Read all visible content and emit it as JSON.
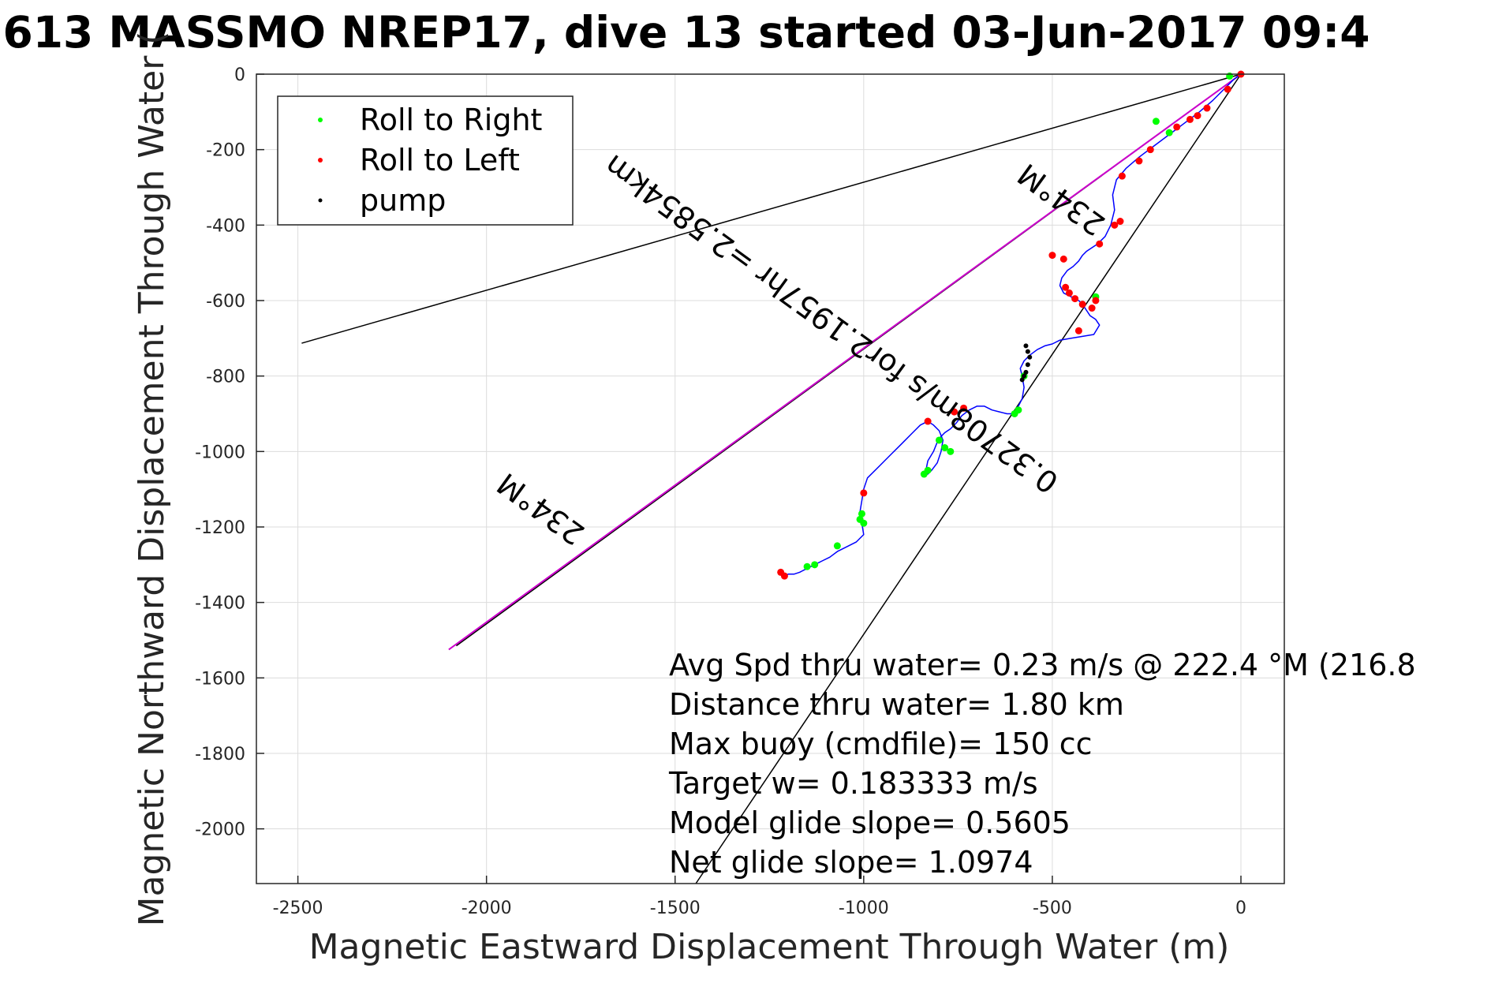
{
  "chart_data": {
    "type": "line",
    "title": "613 MASSMO NREP17, dive 13 started 03-Jun-2017 09:4",
    "xlabel": "Magnetic Eastward Displacement Through Water (m)",
    "ylabel": "Magnetic Northward Displacement Through Water (",
    "xlim": [
      -2610,
      115
    ],
    "ylim": [
      -2145,
      0
    ],
    "xticks": [
      -2500,
      -2000,
      -1500,
      -1000,
      -500,
      0
    ],
    "yticks": [
      0,
      -200,
      -400,
      -600,
      -800,
      -1000,
      -1200,
      -1400,
      -1600,
      -1800,
      -2000
    ],
    "grid": true,
    "legend": {
      "placement": "top-left",
      "entries": [
        {
          "label": "Roll to Right",
          "color": "#00ff00"
        },
        {
          "label": "Roll to Left",
          "color": "#ff0000"
        },
        {
          "label": "pump",
          "color": "#000000"
        }
      ]
    },
    "heading_lines": [
      {
        "x": [
          0,
          -2490
        ],
        "y": [
          0,
          -713
        ],
        "color": "#000000"
      },
      {
        "x": [
          0,
          -2080
        ],
        "y": [
          0,
          -1515
        ],
        "color": "#000000"
      },
      {
        "x": [
          0,
          -1445
        ],
        "y": [
          0,
          -2145
        ],
        "color": "#000000"
      }
    ],
    "course_line": {
      "x": [
        0,
        -2100
      ],
      "y": [
        0,
        -1525
      ],
      "color": "#cc00cc"
    },
    "track": {
      "color": "#0000ff",
      "x": [
        0,
        -20,
        -45,
        -75,
        -110,
        -150,
        -190,
        -230,
        -270,
        -305,
        -330,
        -340,
        -335,
        -345,
        -360,
        -380,
        -395,
        -410,
        -420,
        -430,
        -445,
        -460,
        -475,
        -480,
        -470,
        -450,
        -430,
        -420,
        -410,
        -400,
        -385,
        -375,
        -390,
        -420,
        -450,
        -480,
        -500,
        -520,
        -540,
        -560,
        -575,
        -585,
        -580,
        -575,
        -580,
        -590,
        -600,
        -610,
        -620,
        -640,
        -660,
        -680,
        -700,
        -720,
        -740,
        -755,
        -770,
        -785,
        -795,
        -805,
        -815,
        -830,
        -835,
        -830,
        -820,
        -805,
        -795,
        -790,
        -800,
        -815,
        -830,
        -850,
        -870,
        -900,
        -930,
        -960,
        -990,
        -1000,
        -1005,
        -1010,
        -1005,
        -1000,
        -1020,
        -1050,
        -1070,
        -1090,
        -1110,
        -1130,
        -1150,
        -1170,
        -1185,
        -1200,
        -1210
      ],
      "y": [
        0,
        -15,
        -40,
        -70,
        -100,
        -130,
        -160,
        -190,
        -220,
        -250,
        -280,
        -320,
        -360,
        -400,
        -430,
        -450,
        -460,
        -470,
        -480,
        -495,
        -510,
        -520,
        -540,
        -560,
        -580,
        -590,
        -600,
        -610,
        -625,
        -640,
        -650,
        -665,
        -690,
        -695,
        -700,
        -705,
        -715,
        -720,
        -730,
        -745,
        -760,
        -780,
        -800,
        -830,
        -860,
        -880,
        -895,
        -900,
        -900,
        -895,
        -890,
        -880,
        -880,
        -890,
        -905,
        -925,
        -940,
        -950,
        -960,
        -975,
        -1000,
        -1025,
        -1050,
        -1060,
        -1050,
        -1030,
        -1000,
        -970,
        -945,
        -930,
        -920,
        -930,
        -950,
        -980,
        -1010,
        -1040,
        -1070,
        -1100,
        -1130,
        -1160,
        -1190,
        -1220,
        -1240,
        -1255,
        -1265,
        -1280,
        -1290,
        -1300,
        -1310,
        -1320,
        -1325,
        -1325,
        -1330
      ]
    },
    "series": [
      {
        "name": "Roll to Right",
        "color": "#00ff00",
        "x": [
          -30,
          -190,
          -225,
          -385,
          -770,
          -785,
          -800,
          -575,
          -590,
          -600,
          -1000,
          -1005,
          -1010,
          -1070,
          -1130,
          -1150,
          -830,
          -840
        ],
        "y": [
          -5,
          -155,
          -125,
          -590,
          -1000,
          -990,
          -970,
          -800,
          -890,
          -900,
          -1190,
          -1165,
          -1180,
          -1250,
          -1300,
          -1305,
          -1050,
          -1060
        ]
      },
      {
        "name": "Roll to Left",
        "color": "#ff0000",
        "x": [
          0,
          -35,
          -90,
          -115,
          -135,
          -170,
          -240,
          -270,
          -315,
          -320,
          -335,
          -375,
          -385,
          -395,
          -420,
          -440,
          -455,
          -465,
          -470,
          -500,
          -430,
          -735,
          -760,
          -830,
          -1000,
          -1220,
          -1210
        ],
        "y": [
          0,
          -40,
          -90,
          -110,
          -120,
          -140,
          -200,
          -230,
          -270,
          -390,
          -400,
          -450,
          -600,
          -620,
          -610,
          -595,
          -580,
          -565,
          -490,
          -480,
          -680,
          -885,
          -895,
          -920,
          -1110,
          -1320,
          -1330
        ]
      },
      {
        "name": "pump",
        "color": "#000000",
        "x": [
          -570,
          -565,
          -560,
          -565,
          -570,
          -575,
          -580
        ],
        "y": [
          -720,
          -735,
          -750,
          -770,
          -790,
          -800,
          -810
        ]
      }
    ],
    "annotations": [
      {
        "text": "234°M",
        "x": -460,
        "y": -310,
        "angle_deg": 216
      },
      {
        "text": "0.32708m/s for2.1957hr =2.5854km",
        "x": -1070,
        "y": -640,
        "angle_deg": 216
      },
      {
        "text": "234°M",
        "x": -1840,
        "y": -1130,
        "angle_deg": 216
      }
    ],
    "stats": [
      "Avg Spd thru water=  0.23 m/s @ 222.4 °M (216.8",
      "Distance thru water=  1.80 km",
      "Max buoy (cmdfile)= 150 cc",
      "Target w= 0.183333 m/s",
      "Model glide slope= 0.5605",
      "Net glide slope= 1.0974"
    ]
  }
}
